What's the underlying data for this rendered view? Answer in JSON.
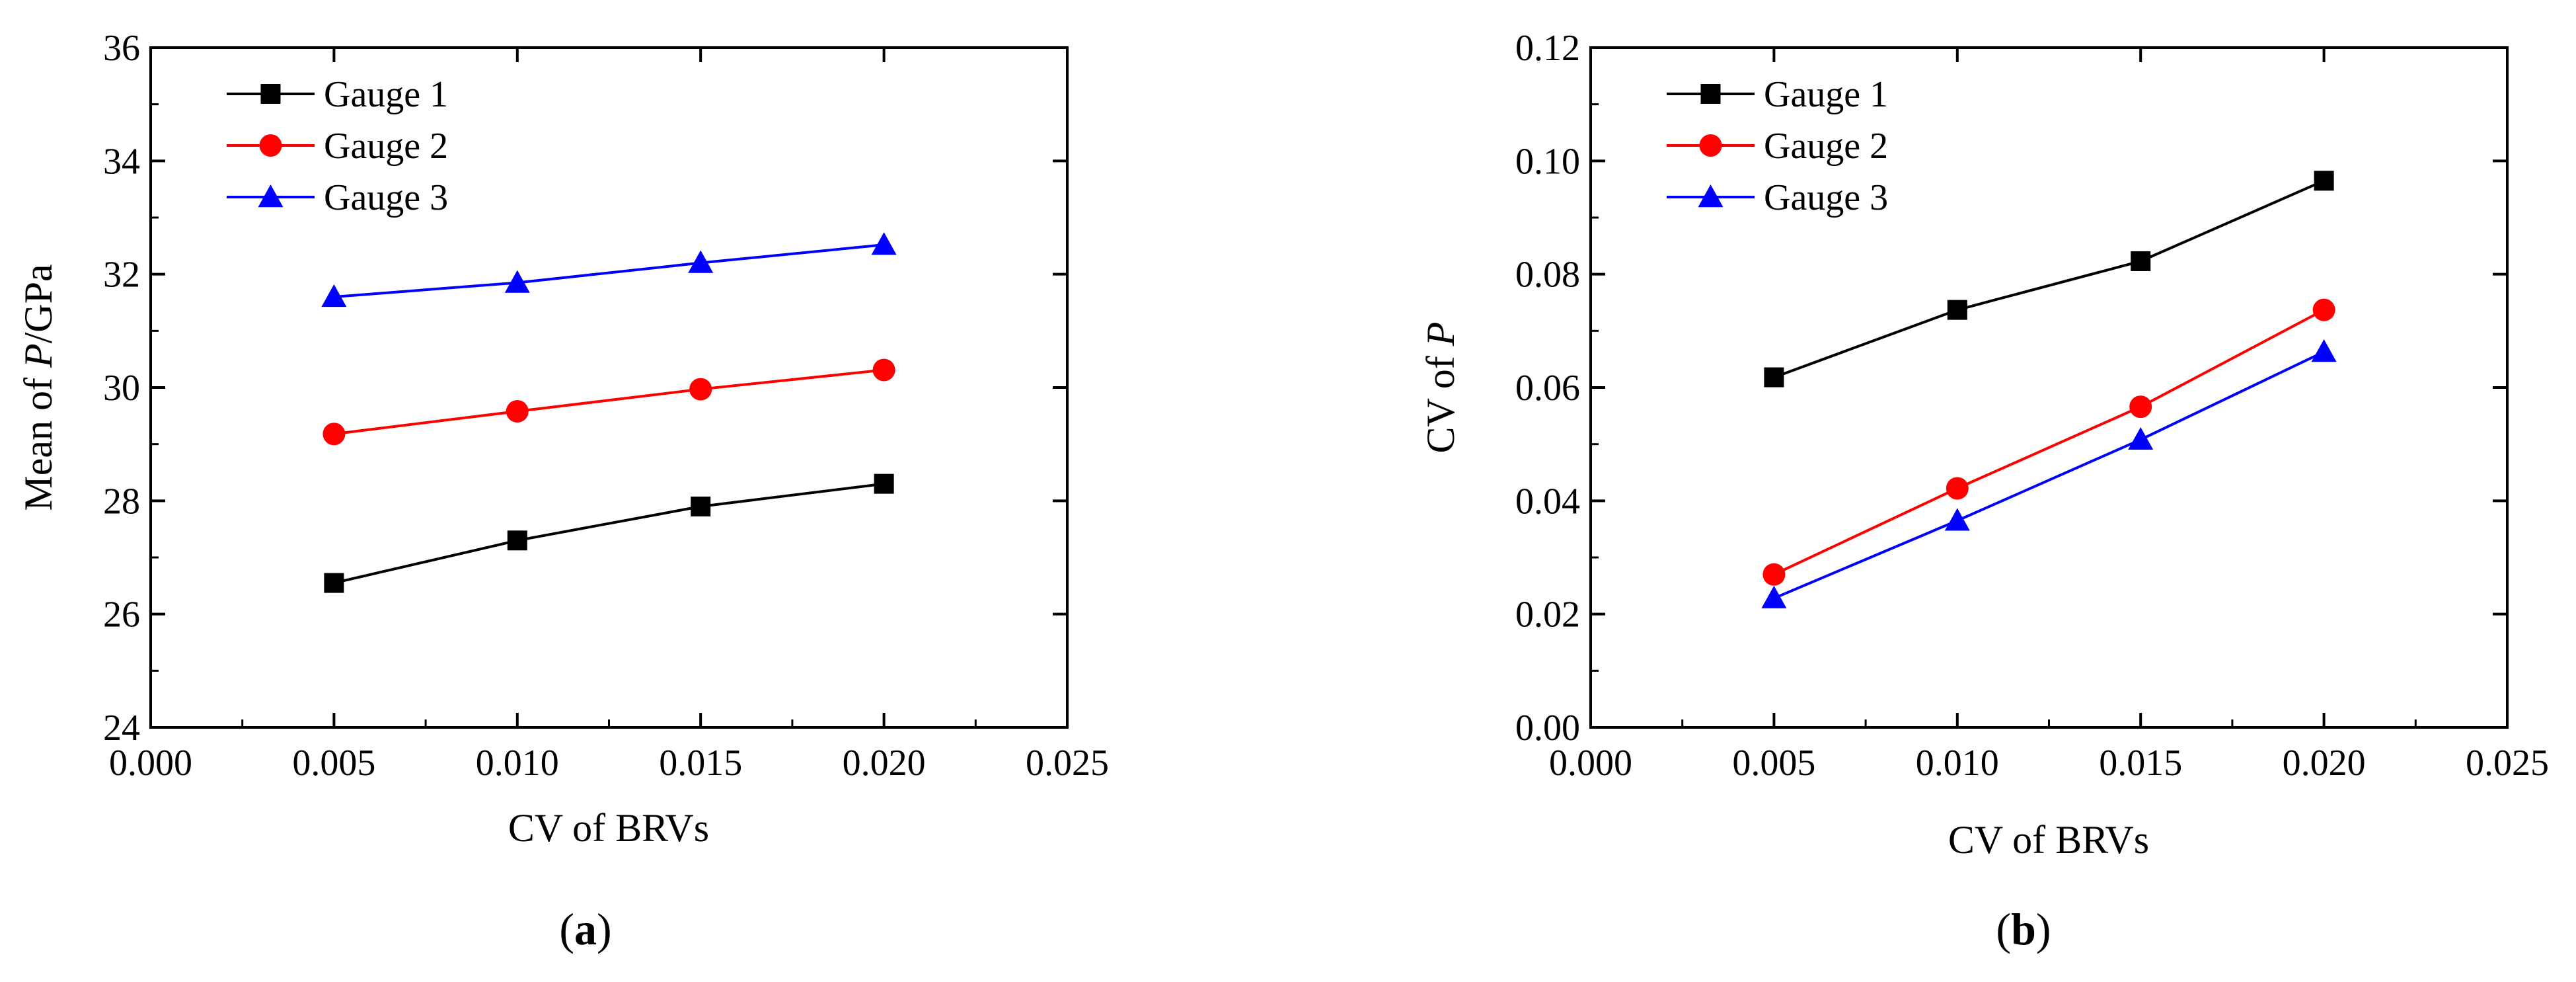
{
  "chart_data": [
    {
      "type": "line",
      "panel_label": "a",
      "title": "",
      "xlabel": "CV of BRVs",
      "ylabel_prefix": "Mean of ",
      "ylabel_var": "P",
      "ylabel_suffix": "/GPa",
      "xlim": [
        0.0,
        0.025
      ],
      "ylim": [
        24,
        36
      ],
      "xticks": [
        0.0,
        0.005,
        0.01,
        0.015,
        0.02,
        0.025
      ],
      "xtick_labels": [
        "0.000",
        "0.005",
        "0.010",
        "0.015",
        "0.020",
        "0.025"
      ],
      "yticks": [
        24,
        26,
        28,
        30,
        32,
        34,
        36
      ],
      "ytick_labels": [
        "24",
        "26",
        "28",
        "30",
        "32",
        "34",
        "36"
      ],
      "legend_position": "top-left",
      "x": [
        0.005,
        0.01,
        0.015,
        0.02
      ],
      "series": [
        {
          "name": "Gauge 1",
          "color": "#000000",
          "marker": "square",
          "values": [
            26.55,
            27.3,
            27.9,
            28.3
          ]
        },
        {
          "name": "Gauge 2",
          "color": "#ff0000",
          "marker": "circle",
          "values": [
            29.18,
            29.58,
            29.97,
            30.31
          ]
        },
        {
          "name": "Gauge 3",
          "color": "#0000ff",
          "marker": "triangle",
          "values": [
            31.6,
            31.85,
            32.2,
            32.52
          ]
        }
      ]
    },
    {
      "type": "line",
      "panel_label": "b",
      "title": "",
      "xlabel": "CV of BRVs",
      "ylabel_prefix": "CV of ",
      "ylabel_var": "P",
      "ylabel_suffix": "",
      "xlim": [
        0.0,
        0.025
      ],
      "ylim": [
        0.0,
        0.12
      ],
      "xticks": [
        0.0,
        0.005,
        0.01,
        0.015,
        0.02,
        0.025
      ],
      "xtick_labels": [
        "0.000",
        "0.005",
        "0.010",
        "0.015",
        "0.020",
        "0.025"
      ],
      "yticks": [
        0.0,
        0.02,
        0.04,
        0.06,
        0.08,
        0.1,
        0.12
      ],
      "ytick_labels": [
        "0.00",
        "0.02",
        "0.04",
        "0.06",
        "0.08",
        "0.10",
        "0.12"
      ],
      "legend_position": "top-left",
      "x": [
        0.005,
        0.01,
        0.015,
        0.02
      ],
      "series": [
        {
          "name": "Gauge 1",
          "color": "#000000",
          "marker": "square",
          "values": [
            0.0618,
            0.0737,
            0.0823,
            0.0965
          ]
        },
        {
          "name": "Gauge 2",
          "color": "#ff0000",
          "marker": "circle",
          "values": [
            0.027,
            0.0422,
            0.0566,
            0.0737
          ]
        },
        {
          "name": "Gauge 3",
          "color": "#0000ff",
          "marker": "triangle",
          "values": [
            0.0228,
            0.0365,
            0.0508,
            0.0663
          ]
        }
      ]
    }
  ]
}
